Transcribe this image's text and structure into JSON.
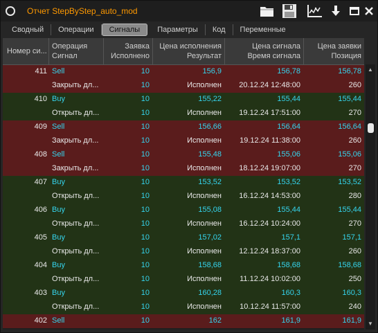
{
  "window": {
    "title": "Отчет StepByStep_auto_mod",
    "icons": [
      "folder-icon",
      "save-icon",
      "chart-icon",
      "download-icon",
      "maximize-icon",
      "close-icon"
    ]
  },
  "tabs": [
    "Сводный",
    "Операции",
    "Сигналы",
    "Параметры",
    "Код",
    "Переменные"
  ],
  "active_tab": "Сигналы",
  "columns": {
    "col1": "Номер си...",
    "col2_top": "Операция",
    "col2_bottom": "Сигнал",
    "col3_top": "Заявка",
    "col3_bottom": "Исполнено",
    "col4_top": "Цена исполнения",
    "col4_bottom": "Результат",
    "col5_top": "Цена сигнала",
    "col5_bottom": "Время сигнала",
    "col6_top": "Цена заявки",
    "col6_bottom": "Позиция"
  },
  "colors": {
    "sell_row": "#5a1c1c",
    "buy_row": "#223316",
    "accent_title": "#ff9900",
    "value_cyan": "#35d5ee"
  },
  "rows": [
    {
      "kind": "sell",
      "num": "411",
      "op": "Sell",
      "qty": "10",
      "exec": "156,9",
      "sig": "156,78",
      "pos": "156,78"
    },
    {
      "kind": "sell",
      "num": "",
      "op": "Закрыть дл...",
      "qty": "10",
      "exec": "Исполнен",
      "sig": "20.12.24 12:48:00",
      "pos": "260"
    },
    {
      "kind": "buy",
      "num": "410",
      "op": "Buy",
      "qty": "10",
      "exec": "155,22",
      "sig": "155,44",
      "pos": "155,44"
    },
    {
      "kind": "buy",
      "num": "",
      "op": "Открыть дл...",
      "qty": "10",
      "exec": "Исполнен",
      "sig": "19.12.24 17:51:00",
      "pos": "270"
    },
    {
      "kind": "sell",
      "num": "409",
      "op": "Sell",
      "qty": "10",
      "exec": "156,66",
      "sig": "156,64",
      "pos": "156,64"
    },
    {
      "kind": "sell",
      "num": "",
      "op": "Закрыть дл...",
      "qty": "10",
      "exec": "Исполнен",
      "sig": "19.12.24 11:38:00",
      "pos": "260"
    },
    {
      "kind": "sell",
      "num": "408",
      "op": "Sell",
      "qty": "10",
      "exec": "155,48",
      "sig": "155,06",
      "pos": "155,06"
    },
    {
      "kind": "sell",
      "num": "",
      "op": "Закрыть дл...",
      "qty": "10",
      "exec": "Исполнен",
      "sig": "18.12.24 19:07:00",
      "pos": "270"
    },
    {
      "kind": "buy",
      "num": "407",
      "op": "Buy",
      "qty": "10",
      "exec": "153,52",
      "sig": "153,52",
      "pos": "153,52"
    },
    {
      "kind": "buy",
      "num": "",
      "op": "Открыть дл...",
      "qty": "10",
      "exec": "Исполнен",
      "sig": "16.12.24 14:53:00",
      "pos": "280"
    },
    {
      "kind": "buy",
      "num": "406",
      "op": "Buy",
      "qty": "10",
      "exec": "155,08",
      "sig": "155,44",
      "pos": "155,44"
    },
    {
      "kind": "buy",
      "num": "",
      "op": "Открыть дл...",
      "qty": "10",
      "exec": "Исполнен",
      "sig": "16.12.24 10:24:00",
      "pos": "270"
    },
    {
      "kind": "buy",
      "num": "405",
      "op": "Buy",
      "qty": "10",
      "exec": "157,02",
      "sig": "157,1",
      "pos": "157,1"
    },
    {
      "kind": "buy",
      "num": "",
      "op": "Открыть дл...",
      "qty": "10",
      "exec": "Исполнен",
      "sig": "12.12.24 18:37:00",
      "pos": "260"
    },
    {
      "kind": "buy",
      "num": "404",
      "op": "Buy",
      "qty": "10",
      "exec": "158,68",
      "sig": "158,68",
      "pos": "158,68"
    },
    {
      "kind": "buy",
      "num": "",
      "op": "Открыть дл...",
      "qty": "10",
      "exec": "Исполнен",
      "sig": "11.12.24 10:02:00",
      "pos": "250"
    },
    {
      "kind": "buy",
      "num": "403",
      "op": "Buy",
      "qty": "10",
      "exec": "160,28",
      "sig": "160,3",
      "pos": "160,3"
    },
    {
      "kind": "buy",
      "num": "",
      "op": "Открыть дл...",
      "qty": "10",
      "exec": "Исполнен",
      "sig": "10.12.24 11:57:00",
      "pos": "240"
    },
    {
      "kind": "sell",
      "num": "402",
      "op": "Sell",
      "qty": "10",
      "exec": "162",
      "sig": "161,9",
      "pos": "161,9"
    }
  ]
}
